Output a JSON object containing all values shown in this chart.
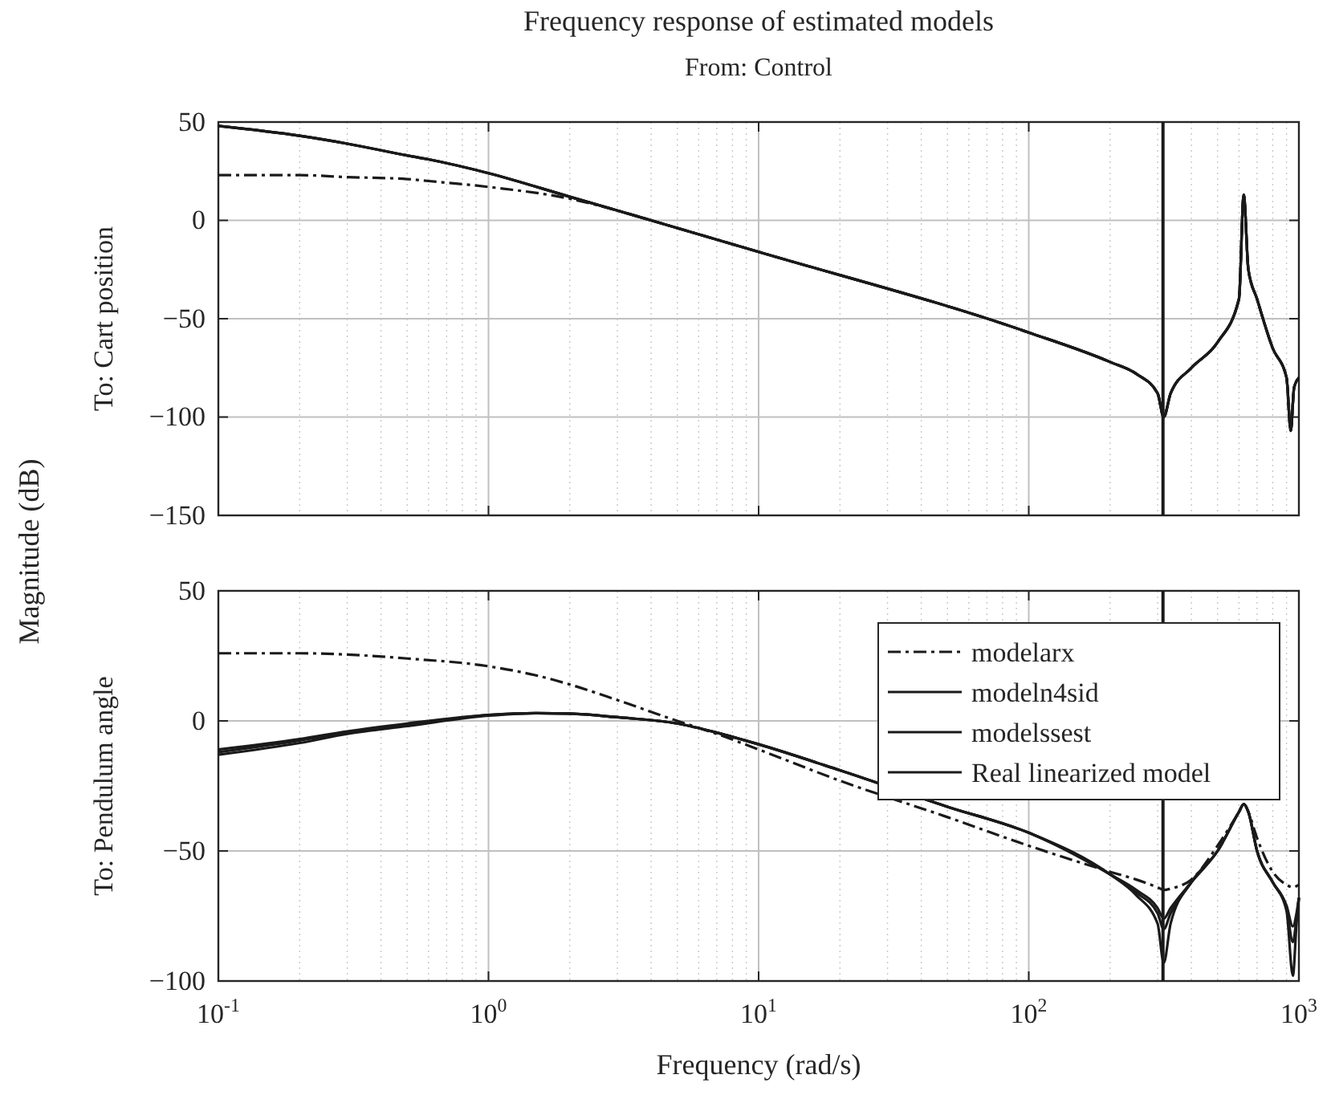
{
  "chart_data": [
    {
      "type": "line",
      "title": "Frequency response of estimated models",
      "subtitle": "From: Control",
      "ylabel": "To: Cart position",
      "annotations": [
        "Magnitude (dB)"
      ],
      "log": "x",
      "xlim": [
        0.1,
        1000
      ],
      "xticks": [
        {
          "value": 0.1,
          "label": null
        },
        {
          "value": 1,
          "label": null
        },
        {
          "value": 10,
          "label": null
        },
        {
          "value": 100,
          "label": null
        },
        {
          "value": 1000,
          "label": null
        }
      ],
      "ylim": [
        -150,
        50
      ],
      "yticks": [
        -150,
        -100,
        -50,
        0,
        50
      ],
      "grid": true,
      "tick_labels": "y",
      "legend": false,
      "x": [
        0.1,
        0.2,
        0.3,
        0.5,
        0.6,
        1,
        2,
        3,
        4,
        10,
        100,
        200,
        250,
        300,
        316,
        335,
        400,
        500,
        600,
        625,
        650,
        700,
        800,
        900,
        933,
        960,
        1000
      ],
      "ref_lines": [
        {
          "axis": "x",
          "value": 314,
          "color": "#1a1a1a"
        }
      ],
      "series": [
        {
          "color": "#1a1a1a",
          "line_style": "dashdot",
          "values": [
            23,
            23,
            22,
            21,
            20,
            17,
            11,
            5,
            0,
            -16,
            -57,
            -72,
            -78,
            -88,
            -100,
            -88,
            -75,
            -62,
            -40,
            13,
            -25,
            -40,
            -65,
            -80,
            -107,
            -85,
            -80
          ]
        },
        {
          "color": "#1a1a1a",
          "line_style": "solid",
          "values": [
            48,
            43,
            39,
            33,
            31,
            24,
            12,
            5,
            0,
            -16,
            -57,
            -72,
            -78,
            -88,
            -100,
            -88,
            -75,
            -62,
            -40,
            13,
            -25,
            -40,
            -65,
            -80,
            -107,
            -85,
            -80
          ]
        },
        {
          "color": "#1a1a1a",
          "line_style": "solid",
          "values": [
            48,
            43,
            39,
            33,
            31,
            24,
            12,
            5,
            0,
            -16,
            -57,
            -72,
            -78,
            -88,
            -100,
            -88,
            -75,
            -62,
            -40,
            13,
            -25,
            -40,
            -65,
            -80,
            -107,
            -85,
            -80
          ]
        },
        {
          "color": "#1a1a1a",
          "line_style": "solid",
          "values": [
            48,
            43,
            39,
            33,
            31,
            24,
            12,
            5,
            0,
            -16,
            -57,
            -72,
            -78,
            -88,
            -100,
            -88,
            -75,
            -62,
            -40,
            13,
            -25,
            -40,
            -65,
            -80,
            -107,
            -85,
            -80
          ]
        }
      ]
    },
    {
      "type": "line",
      "xlabel": "Frequency  (rad/s)",
      "ylabel": "To: Pendulum angle",
      "log": "x",
      "xlim": [
        0.1,
        1000
      ],
      "xticks": [
        {
          "value": 0.1,
          "label": "10$^{-1}$"
        },
        {
          "value": 1,
          "label": "10$^{0}$"
        },
        {
          "value": 10,
          "label": "10$^{1}$"
        },
        {
          "value": 100,
          "label": "10$^{2}$"
        },
        {
          "value": 1000,
          "label": "10$^{3}$"
        }
      ],
      "ylim": [
        -100,
        50
      ],
      "yticks": [
        -100,
        -50,
        0,
        50
      ],
      "grid": true,
      "legend": "top right",
      "x": [
        0.1,
        0.2,
        0.3,
        0.5,
        1,
        1.5,
        2,
        3,
        5,
        7,
        10,
        20,
        50,
        100,
        200,
        250,
        300,
        316,
        335,
        400,
        500,
        600,
        625,
        650,
        700,
        800,
        900,
        950,
        980,
        1000
      ],
      "ref_lines": [
        {
          "axis": "x",
          "value": 314,
          "color": "#1a1a1a"
        }
      ],
      "series": [
        {
          "name": "modelarx",
          "color": "#1a1a1a",
          "line_style": "dashdot",
          "values": [
            26,
            26,
            25.5,
            24,
            21,
            17.5,
            14,
            8,
            0,
            -5,
            -11,
            -23,
            -37,
            -48,
            -58,
            -61,
            -64,
            -65,
            -64.5,
            -61,
            -48,
            -35,
            -32,
            -35,
            -45,
            -58,
            -63,
            -64,
            -63.5,
            -63
          ]
        },
        {
          "name": "modeln4sid",
          "color": "#1a1a1a",
          "line_style": "solid",
          "values": [
            -13,
            -8.5,
            -5,
            -2,
            2,
            3,
            2.8,
            1.4,
            -1,
            -4.5,
            -9,
            -19,
            -33,
            -43,
            -59,
            -66,
            -74,
            -80,
            -74,
            -62,
            -50,
            -35,
            -32,
            -35,
            -50,
            -62,
            -72,
            -85,
            -76,
            -68
          ]
        },
        {
          "name": "modelssest",
          "color": "#1a1a1a",
          "line_style": "solid",
          "values": [
            -12,
            -7.5,
            -4.5,
            -1.5,
            2.3,
            3,
            2.8,
            1.4,
            -1,
            -4.5,
            -9,
            -19,
            -33,
            -43,
            -59,
            -65,
            -72,
            -76,
            -72,
            -62,
            -50,
            -35,
            -32,
            -35,
            -50,
            -62,
            -71,
            -79,
            -74,
            -68
          ]
        },
        {
          "name": "Real linearized model",
          "color": "#1a1a1a",
          "line_style": "solid",
          "values": [
            -11,
            -7,
            -4,
            -1,
            2.3,
            3,
            2.8,
            1.4,
            -1,
            -4.5,
            -9,
            -19,
            -33,
            -43,
            -59,
            -67,
            -78,
            -93,
            -78,
            -62,
            -50,
            -35,
            -32,
            -35,
            -50,
            -62,
            -73,
            -98,
            -78,
            -68
          ]
        }
      ]
    }
  ]
}
